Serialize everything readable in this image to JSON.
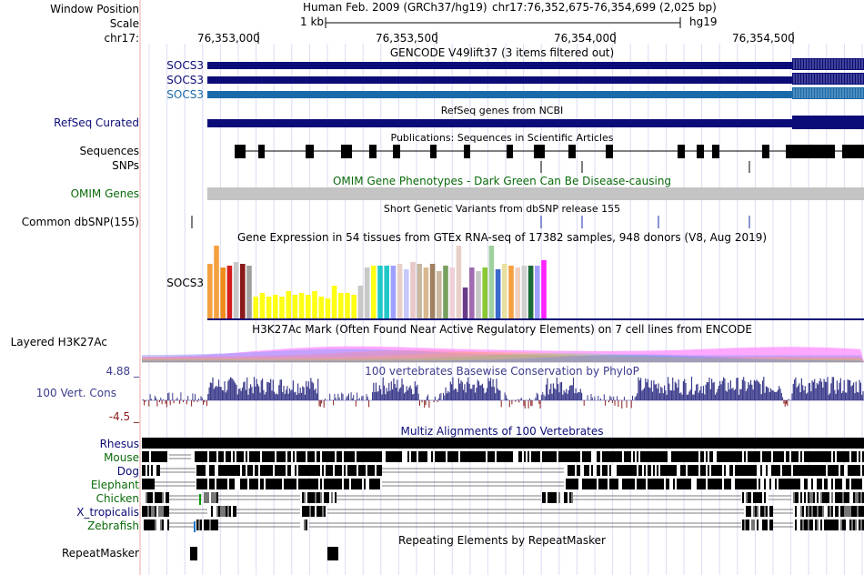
{
  "header": {
    "window_position_label": "Window Position",
    "scale_label": "Scale",
    "chrom_label": "chr17:",
    "assembly": "Human Feb. 2009 (GRCh37/hg19)",
    "position": "chr17:76,352,675-76,354,699 (2,025 bp)",
    "scale_value": "1 kb",
    "scale_db": "hg19",
    "ticks": [
      "76,353,000",
      "76,353,500",
      "76,354,000",
      "76,354,500"
    ]
  },
  "tracks": {
    "gencode": {
      "title": "GENCODE V49lift37 (3 items filtered out)",
      "items": [
        "SOCS3",
        "SOCS3",
        "SOCS3"
      ],
      "colors": [
        "#0c0c78",
        "#0c0c78",
        "#1a6aaa"
      ]
    },
    "refseq": {
      "label": "RefSeq Curated",
      "title": "RefSeq genes from NCBI",
      "color": "#0c0c78"
    },
    "publications": {
      "label": "Sequences",
      "title": "Publications: Sequences in Scientific Articles"
    },
    "snps": {
      "label": "SNPs"
    },
    "omim": {
      "label": "OMIM Genes",
      "title": "OMIM Gene Phenotypes - Dark Green Can Be Disease-causing",
      "color": "#0a6a0a"
    },
    "dbsnp": {
      "label": "Common dbSNP(155)",
      "title": "Short Genetic Variants from dbSNP release 155"
    },
    "gtex": {
      "title": "Gene Expression in 54 tissues from GTEx RNA-seq of 17382 samples, 948 donors (V8, Aug 2019)",
      "gene": "SOCS3"
    },
    "h3k27ac": {
      "label": "Layered H3K27Ac",
      "title": "H3K27Ac Mark (Often Found Near Active Regulatory Elements) on 7 cell lines from ENCODE"
    },
    "conservation": {
      "label": "100 Vert. Cons",
      "title": "100 vertebrates Basewise Conservation by PhyloP",
      "max": "4.88 _",
      "min": "-4.5 _",
      "color": "#3c3c8c"
    },
    "multiz": {
      "title": "Multiz Alignments of 100 Vertebrates",
      "species": [
        "Rhesus",
        "Mouse",
        "Dog",
        "Elephant",
        "Chicken",
        "X_tropicalis",
        "Zebrafish"
      ],
      "species_colors": [
        "#0c0c78",
        "#0a6a0a",
        "#0c0c78",
        "#0a6a0a",
        "#0a6a0a",
        "#0c0c78",
        "#0a6a0a"
      ]
    },
    "repeatmasker": {
      "label": "RepeatMasker",
      "title": "Repeating Elements by RepeatMasker"
    }
  },
  "colors": {
    "navy": "#0c0c78",
    "grid": "#d2d2f0",
    "sidebar_line": "#e8a0a0"
  }
}
